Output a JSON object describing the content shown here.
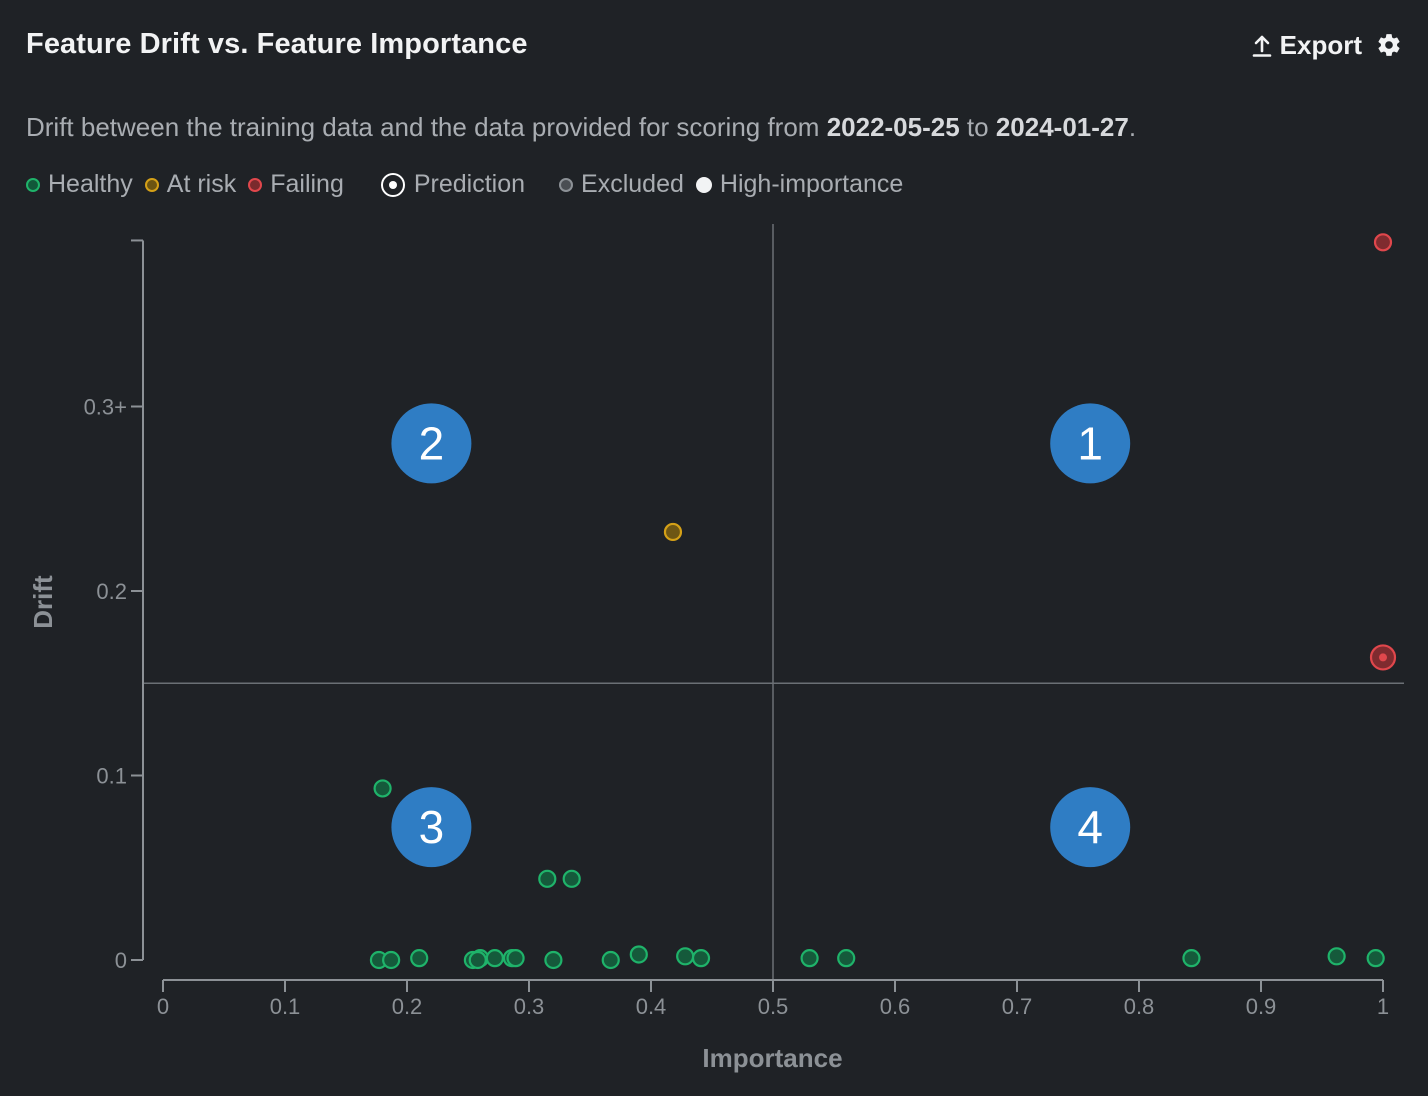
{
  "header": {
    "title": "Feature Drift vs. Feature Importance",
    "export_label": "Export",
    "export_icon": "upload-icon",
    "settings_icon": "gear-icon"
  },
  "subtitle": {
    "prefix": "Drift between the training data and the data provided for scoring from ",
    "start_date": "2022-05-25",
    "middle": " to ",
    "end_date": "2024-01-27",
    "suffix": "."
  },
  "legend": [
    {
      "label": "Healthy",
      "kind": "healthy",
      "color": "#1fb36a"
    },
    {
      "label": "At risk",
      "kind": "at-risk",
      "color": "#d4a017"
    },
    {
      "label": "Failing",
      "kind": "failing",
      "color": "#e0474c"
    },
    {
      "label": "Prediction",
      "kind": "prediction",
      "color": "#ffffff"
    },
    {
      "label": "Excluded",
      "kind": "excluded",
      "color": "#8c9196"
    },
    {
      "label": "High-importance",
      "kind": "high-importance",
      "color": "#ffffff"
    }
  ],
  "colors": {
    "healthy": "#1fb36a",
    "at_risk": "#d4a017",
    "failing": "#e0474c",
    "quadrant_badge": "#2f7dc4",
    "threshold_line": "#6b7075",
    "axis": "#8c9196",
    "background": "#1f2226"
  },
  "chart_data": {
    "type": "scatter",
    "xlabel": "Importance",
    "ylabel": "Drift",
    "xlim": [
      0,
      1
    ],
    "ylim": [
      0,
      0.39
    ],
    "x_ticks": [
      {
        "value": 0,
        "label": "0"
      },
      {
        "value": 0.1,
        "label": "0.1"
      },
      {
        "value": 0.2,
        "label": "0.2"
      },
      {
        "value": 0.3,
        "label": "0.3"
      },
      {
        "value": 0.4,
        "label": "0.4"
      },
      {
        "value": 0.5,
        "label": "0.5"
      },
      {
        "value": 0.6,
        "label": "0.6"
      },
      {
        "value": 0.7,
        "label": "0.7"
      },
      {
        "value": 0.8,
        "label": "0.8"
      },
      {
        "value": 0.9,
        "label": "0.9"
      },
      {
        "value": 1,
        "label": "1"
      }
    ],
    "y_ticks": [
      {
        "value": 0,
        "label": "0"
      },
      {
        "value": 0.1,
        "label": "0.1"
      },
      {
        "value": 0.2,
        "label": "0.2"
      },
      {
        "value": 0.3,
        "label": "0.3+"
      }
    ],
    "thresholds": {
      "importance": 0.5,
      "drift": 0.15
    },
    "quadrants": [
      {
        "label": "1",
        "x": 0.76,
        "y": 0.28
      },
      {
        "label": "2",
        "x": 0.22,
        "y": 0.28
      },
      {
        "label": "3",
        "x": 0.22,
        "y": 0.072
      },
      {
        "label": "4",
        "x": 0.76,
        "y": 0.072
      }
    ],
    "points": [
      {
        "x": 1.0,
        "y": 0.389,
        "status": "failing",
        "prediction": false
      },
      {
        "x": 1.0,
        "y": 0.164,
        "status": "failing",
        "prediction": true
      },
      {
        "x": 0.418,
        "y": 0.232,
        "status": "at-risk",
        "prediction": false
      },
      {
        "x": 0.18,
        "y": 0.093,
        "status": "healthy",
        "prediction": false
      },
      {
        "x": 0.315,
        "y": 0.044,
        "status": "healthy",
        "prediction": false
      },
      {
        "x": 0.335,
        "y": 0.044,
        "status": "healthy",
        "prediction": false
      },
      {
        "x": 0.177,
        "y": 0.0,
        "status": "healthy",
        "prediction": false
      },
      {
        "x": 0.187,
        "y": 0.0,
        "status": "healthy",
        "prediction": false
      },
      {
        "x": 0.21,
        "y": 0.001,
        "status": "healthy",
        "prediction": false
      },
      {
        "x": 0.254,
        "y": 0.0,
        "status": "healthy",
        "prediction": false
      },
      {
        "x": 0.26,
        "y": 0.001,
        "status": "healthy",
        "prediction": false
      },
      {
        "x": 0.258,
        "y": 0.0,
        "status": "healthy",
        "prediction": false
      },
      {
        "x": 0.272,
        "y": 0.001,
        "status": "healthy",
        "prediction": false
      },
      {
        "x": 0.286,
        "y": 0.001,
        "status": "healthy",
        "prediction": false
      },
      {
        "x": 0.289,
        "y": 0.001,
        "status": "healthy",
        "prediction": false
      },
      {
        "x": 0.32,
        "y": 0.0,
        "status": "healthy",
        "prediction": false
      },
      {
        "x": 0.367,
        "y": 0.0,
        "status": "healthy",
        "prediction": false
      },
      {
        "x": 0.39,
        "y": 0.003,
        "status": "healthy",
        "prediction": false
      },
      {
        "x": 0.428,
        "y": 0.002,
        "status": "healthy",
        "prediction": false
      },
      {
        "x": 0.441,
        "y": 0.001,
        "status": "healthy",
        "prediction": false
      },
      {
        "x": 0.53,
        "y": 0.001,
        "status": "healthy",
        "prediction": false
      },
      {
        "x": 0.56,
        "y": 0.001,
        "status": "healthy",
        "prediction": false
      },
      {
        "x": 0.843,
        "y": 0.001,
        "status": "healthy",
        "prediction": false
      },
      {
        "x": 0.962,
        "y": 0.002,
        "status": "healthy",
        "prediction": false
      },
      {
        "x": 0.994,
        "y": 0.001,
        "status": "healthy",
        "prediction": false
      }
    ]
  }
}
